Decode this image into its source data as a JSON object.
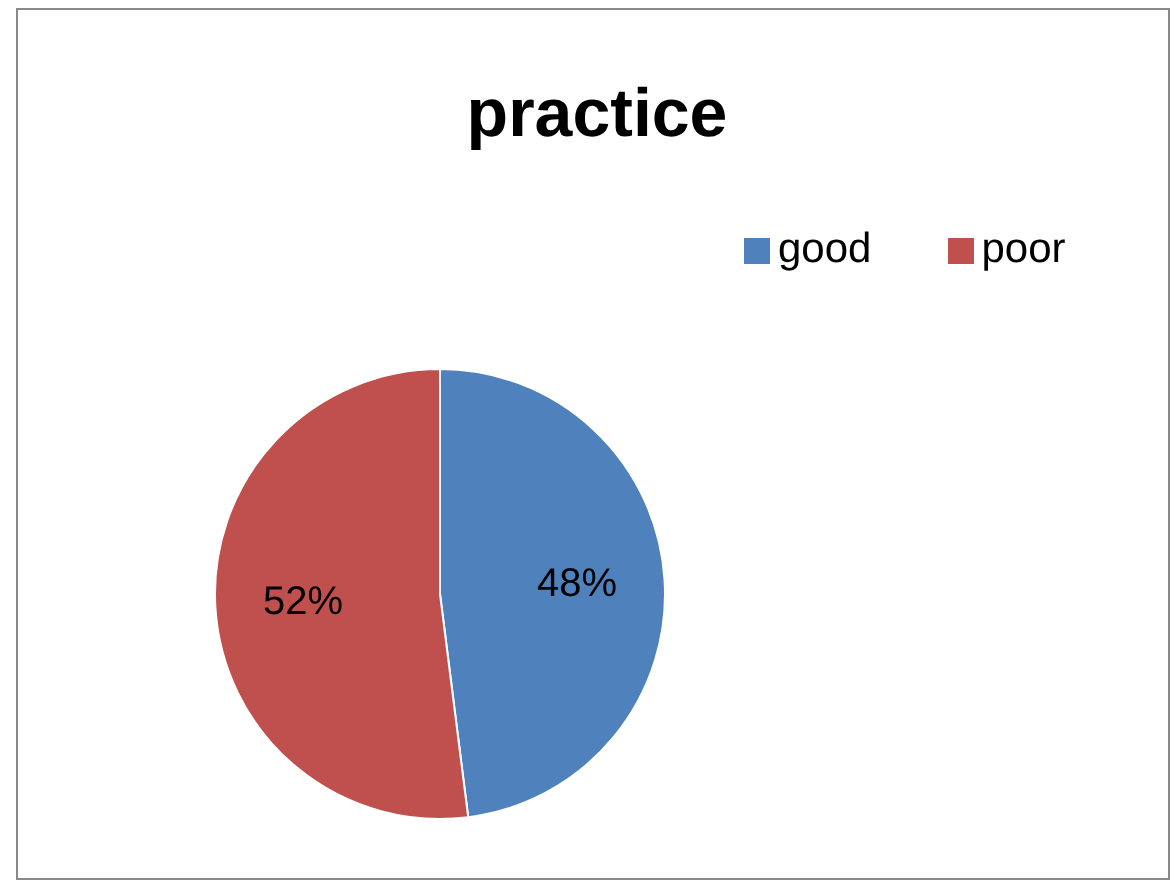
{
  "chart_data": {
    "type": "pie",
    "title": "practice",
    "categories": [
      "good",
      "poor"
    ],
    "values": [
      48,
      52
    ],
    "value_labels": [
      "48%",
      "52%"
    ],
    "colors": [
      "#4f81bd",
      "#c0504d"
    ],
    "legend": "top right"
  }
}
